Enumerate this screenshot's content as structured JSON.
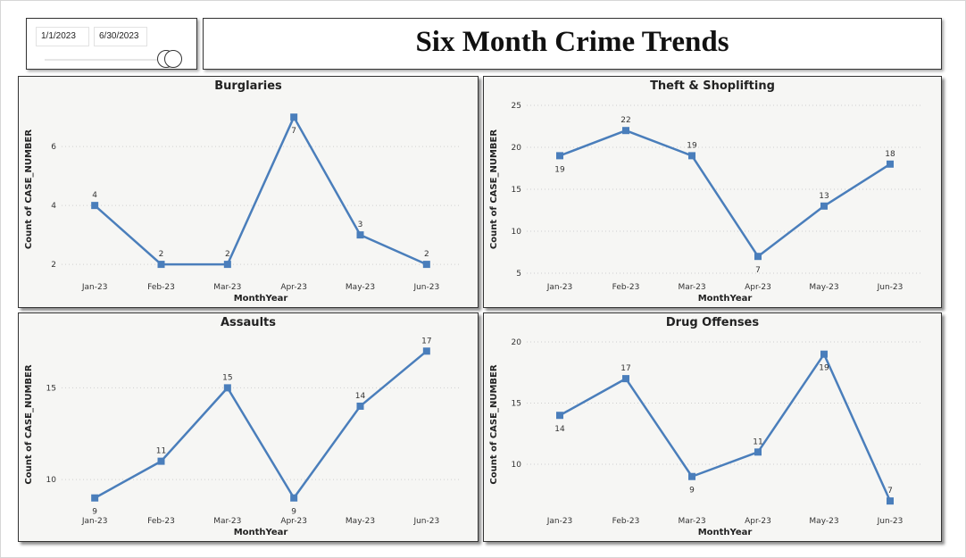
{
  "slicer": {
    "start_date": "1/1/2023",
    "end_date": "6/30/2023"
  },
  "page_title": "Six Month Crime Trends",
  "line_color": "#4a7ebb",
  "chart_data": [
    {
      "type": "line",
      "title": "Burglaries",
      "xlabel": "MonthYear",
      "ylabel": "Count of CASE_NUMBER",
      "categories": [
        "Jan-23",
        "Feb-23",
        "Mar-23",
        "Apr-23",
        "May-23",
        "Jun-23"
      ],
      "values": [
        4,
        2,
        2,
        7,
        3,
        2
      ],
      "yticks": [
        2,
        4,
        6
      ],
      "ylim": [
        1.7,
        7.4
      ],
      "label_position": [
        "above",
        "above",
        "above",
        "below",
        "above",
        "above"
      ],
      "grid": true
    },
    {
      "type": "line",
      "title": "Theft & Shoplifting",
      "xlabel": "MonthYear",
      "ylabel": "Count of CASE_NUMBER",
      "categories": [
        "Jan-23",
        "Feb-23",
        "Mar-23",
        "Apr-23",
        "May-23",
        "Jun-23"
      ],
      "values": [
        19,
        22,
        19,
        7,
        13,
        18
      ],
      "yticks": [
        5,
        10,
        15,
        20,
        25
      ],
      "ylim": [
        5,
        25
      ],
      "label_position": [
        "below",
        "above",
        "above",
        "below",
        "above",
        "above"
      ],
      "grid": true
    },
    {
      "type": "line",
      "title": "Assaults",
      "xlabel": "MonthYear",
      "ylabel": "Count of CASE_NUMBER",
      "categories": [
        "Jan-23",
        "Feb-23",
        "Mar-23",
        "Apr-23",
        "May-23",
        "Jun-23"
      ],
      "values": [
        9,
        11,
        15,
        9,
        14,
        17
      ],
      "yticks": [
        10,
        15
      ],
      "ylim": [
        8.5,
        17.5
      ],
      "label_position": [
        "below",
        "above",
        "above",
        "below",
        "above",
        "above"
      ],
      "grid": true
    },
    {
      "type": "line",
      "title": "Drug Offenses",
      "xlabel": "MonthYear",
      "ylabel": "Count of CASE_NUMBER",
      "categories": [
        "Jan-23",
        "Feb-23",
        "Mar-23",
        "Apr-23",
        "May-23",
        "Jun-23"
      ],
      "values": [
        14,
        17,
        9,
        11,
        19,
        7
      ],
      "yticks": [
        10,
        15,
        20
      ],
      "ylim": [
        6.5,
        20
      ],
      "label_position": [
        "below",
        "above",
        "below",
        "above",
        "below",
        "above"
      ],
      "grid": true
    }
  ]
}
